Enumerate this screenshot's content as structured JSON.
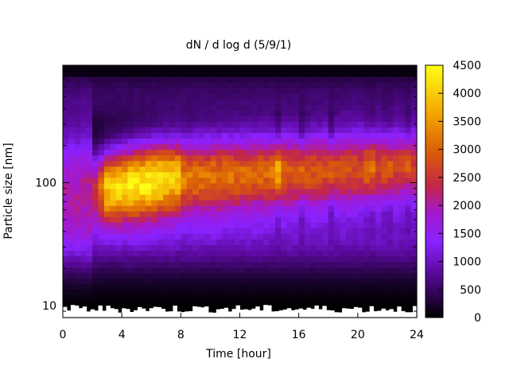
{
  "chart_data": {
    "type": "heatmap",
    "title": "dN / d log d (5/9/1)",
    "xlabel": "Time [hour]",
    "ylabel": "Particle size [nm]",
    "x_ticks": [
      "0",
      "4",
      "8",
      "12",
      "16",
      "20",
      "24"
    ],
    "y_ticks": [
      "10",
      "100"
    ],
    "xlim": [
      0,
      24
    ],
    "ylim": [
      8,
      900
    ],
    "y_scale": "log",
    "colorbar": {
      "ticks": [
        "0",
        "500",
        "1000",
        "1500",
        "2000",
        "2500",
        "3000",
        "3500",
        "4000",
        "4500"
      ],
      "range": [
        0,
        4500
      ],
      "palette": "black-purple-red-orange-yellow"
    },
    "summary": {
      "peak_value_approx": 4500,
      "peak_size_nm_approx": 100,
      "peak_time_hour_approx": 6.5,
      "band_lower_edge_nm": [
        40,
        50,
        60
      ],
      "band_upper_edge_nm": [
        200,
        220
      ]
    }
  }
}
